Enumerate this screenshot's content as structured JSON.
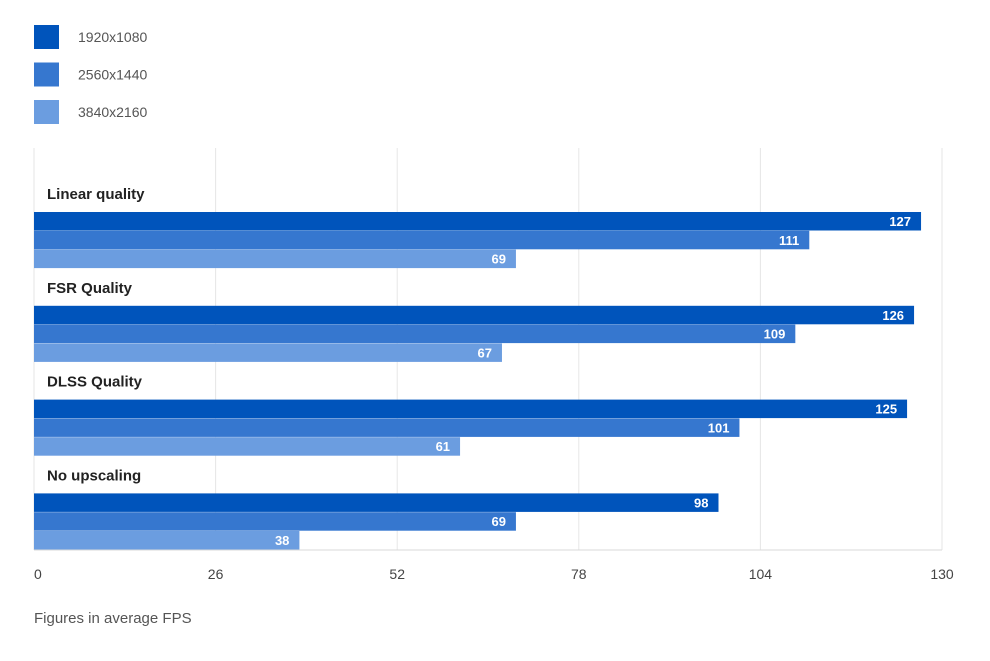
{
  "chart_data": {
    "type": "bar",
    "orientation": "horizontal",
    "categories": [
      "Linear quality",
      "FSR Quality",
      "DLSS Quality",
      "No upscaling"
    ],
    "series": [
      {
        "name": "1920x1080",
        "color": "#0054bb",
        "values": [
          127,
          126,
          125,
          98
        ]
      },
      {
        "name": "2560x1440",
        "color": "#3677cf",
        "values": [
          111,
          109,
          101,
          69
        ]
      },
      {
        "name": "3840x2160",
        "color": "#6b9de0",
        "values": [
          69,
          67,
          61,
          38
        ]
      }
    ],
    "xlim": [
      0,
      130
    ],
    "xticks": [
      "0",
      "26",
      "52",
      "78",
      "104",
      "130"
    ],
    "grid": true,
    "legend_position": "top-left"
  },
  "footnote": "Figures in average FPS"
}
